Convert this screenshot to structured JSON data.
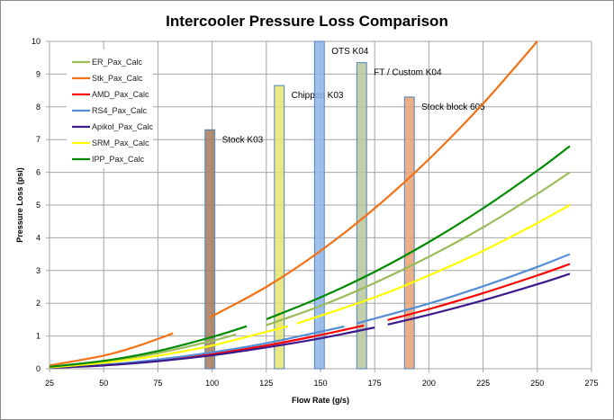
{
  "chart_data": {
    "type": "line",
    "title": "Intercooler Pressure Loss Comparison",
    "xlabel": "Flow Rate (g/s)",
    "ylabel": "Pressure Loss (psi)",
    "xlim": [
      25,
      275
    ],
    "ylim": [
      0,
      10
    ],
    "xticks": [
      25,
      50,
      75,
      100,
      125,
      150,
      175,
      200,
      225,
      250,
      275
    ],
    "yticks": [
      0,
      1,
      2,
      3,
      4,
      5,
      6,
      7,
      8,
      9,
      10
    ],
    "grid": true,
    "legend_placement": "top-left",
    "series": [
      {
        "name": "ER_Pax_Calc",
        "color": "#9bbb59",
        "segments": [
          [
            [
              25,
              0.05
            ],
            [
              50,
              0.21
            ],
            [
              75,
              0.48
            ],
            [
              100,
              0.85
            ],
            [
              111,
              1.05
            ]
          ],
          [
            [
              125,
              1.33
            ],
            [
              150,
              1.92
            ],
            [
              175,
              2.62
            ],
            [
              200,
              3.42
            ],
            [
              225,
              4.32
            ],
            [
              250,
              5.34
            ],
            [
              265,
              6.0
            ]
          ]
        ]
      },
      {
        "name": "Stk_Pax_Calc",
        "color": "#f47216",
        "segments": [
          [
            [
              25,
              0.1
            ],
            [
              50,
              0.4
            ],
            [
              65,
              0.68
            ],
            [
              82,
              1.08
            ]
          ],
          [
            [
              99,
              1.57
            ],
            [
              125,
              2.5
            ],
            [
              150,
              3.6
            ],
            [
              175,
              4.9
            ],
            [
              200,
              6.4
            ],
            [
              225,
              8.1
            ],
            [
              250,
              10.0
            ]
          ]
        ]
      },
      {
        "name": "AMD_Pax_Calc",
        "color": "#ff0000",
        "segments": [
          [
            [
              25,
              0.03
            ],
            [
              50,
              0.11
            ],
            [
              75,
              0.26
            ],
            [
              100,
              0.46
            ],
            [
              125,
              0.71
            ],
            [
              150,
              1.03
            ],
            [
              170,
              1.32
            ]
          ],
          [
            [
              181,
              1.49
            ],
            [
              200,
              1.82
            ],
            [
              225,
              2.31
            ],
            [
              250,
              2.85
            ],
            [
              265,
              3.2
            ]
          ]
        ]
      },
      {
        "name": "RS4_Pax_Calc",
        "color": "#558ed5",
        "segments": [
          [
            [
              25,
              0.03
            ],
            [
              50,
              0.12
            ],
            [
              75,
              0.28
            ],
            [
              100,
              0.5
            ],
            [
              125,
              0.78
            ],
            [
              161,
              1.29
            ]
          ],
          [
            [
              167,
              1.39
            ],
            [
              200,
              1.99
            ],
            [
              225,
              2.52
            ],
            [
              250,
              3.11
            ],
            [
              265,
              3.5
            ]
          ]
        ]
      },
      {
        "name": "Apikol_Pax_Calc",
        "color": "#3d1a8c",
        "segments": [
          [
            [
              25,
              0.03
            ],
            [
              50,
              0.1
            ],
            [
              75,
              0.23
            ],
            [
              100,
              0.41
            ],
            [
              125,
              0.65
            ],
            [
              150,
              0.93
            ],
            [
              175,
              1.26
            ]
          ],
          [
            [
              181,
              1.35
            ],
            [
              200,
              1.65
            ],
            [
              225,
              2.09
            ],
            [
              250,
              2.58
            ],
            [
              265,
              2.9
            ]
          ]
        ]
      },
      {
        "name": "SRM_Pax_Calc",
        "color": "#ffff00",
        "segments": [
          [
            [
              25,
              0.04
            ],
            [
              50,
              0.18
            ],
            [
              75,
              0.4
            ],
            [
              100,
              0.71
            ],
            [
              135,
              1.3
            ]
          ],
          [
            [
              139,
              1.38
            ],
            [
              175,
              2.18
            ],
            [
              200,
              2.85
            ],
            [
              225,
              3.6
            ],
            [
              250,
              4.45
            ],
            [
              265,
              5.0
            ]
          ]
        ]
      },
      {
        "name": "IPP_Pax_Calc",
        "color": "#008a00",
        "segments": [
          [
            [
              25,
              0.06
            ],
            [
              50,
              0.24
            ],
            [
              75,
              0.54
            ],
            [
              100,
              0.97
            ],
            [
              116,
              1.3
            ]
          ],
          [
            [
              125,
              1.51
            ],
            [
              150,
              2.18
            ],
            [
              175,
              2.96
            ],
            [
              200,
              3.87
            ],
            [
              225,
              4.9
            ],
            [
              250,
              6.05
            ],
            [
              265,
              6.8
            ]
          ]
        ]
      }
    ],
    "bars": [
      {
        "label": "Stock K03",
        "x": 99,
        "value": 7.3,
        "color": "#a57b5c"
      },
      {
        "label": "Chipped K03",
        "x": 131,
        "value": 8.65,
        "color": "#e6e46e"
      },
      {
        "label": "OTS K04",
        "x": 149.5,
        "value": 10,
        "color": "#8fb6ea"
      },
      {
        "label": "FT / Custom K04",
        "x": 169,
        "value": 9.35,
        "color": "#b9c59b"
      },
      {
        "label": "Stock block 605",
        "x": 191,
        "value": 8.3,
        "color": "#e8a272"
      }
    ],
    "bar_width": 4.5,
    "bar_border_color": "#4f81bd"
  }
}
